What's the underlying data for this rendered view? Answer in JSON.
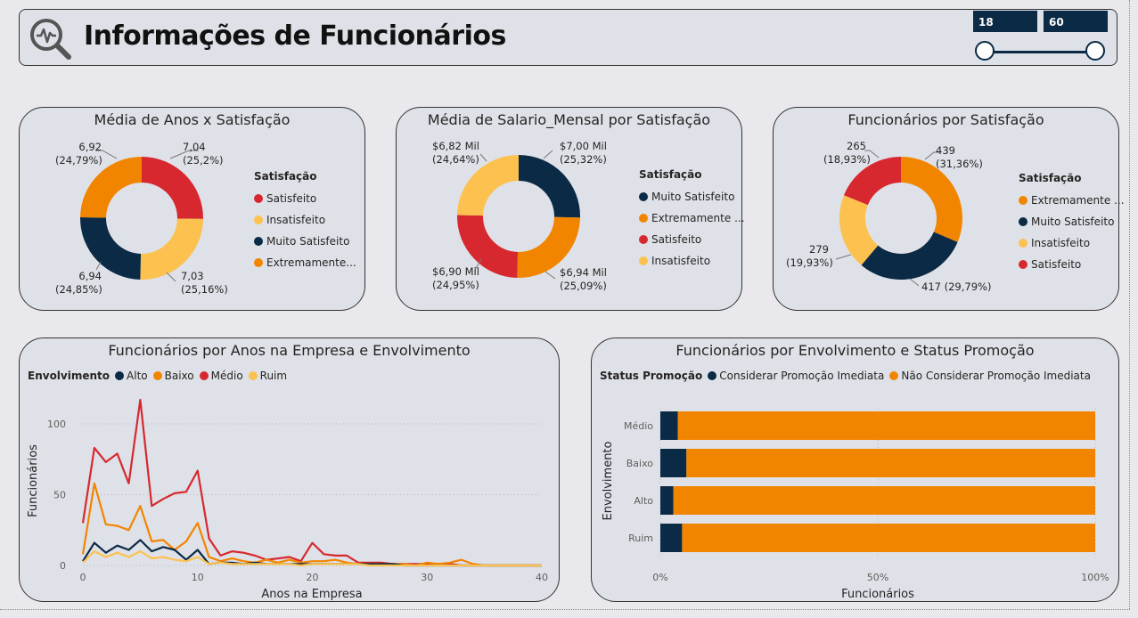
{
  "header": {
    "title": "Informações de Funcionários",
    "slider": {
      "min_label": "18",
      "max_label": "60"
    }
  },
  "colors": {
    "navy": "#0b2a45",
    "orange": "#f28500",
    "red": "#d7282f",
    "yellow": "#fcc14f"
  },
  "donut1": {
    "title": "Média de Anos x Satisfação",
    "legend_title": "Satisfação",
    "slices": [
      {
        "name": "Satisfeito",
        "value": 7.04,
        "label": "7,04",
        "pct": "(25,2%)",
        "color": "#d7282f"
      },
      {
        "name": "Insatisfeito",
        "value": 7.03,
        "label": "7,03",
        "pct": "(25,16%)",
        "color": "#fcc14f"
      },
      {
        "name": "Muito Satisfeito",
        "value": 6.94,
        "label": "6,94",
        "pct": "(24,85%)",
        "color": "#0b2a45"
      },
      {
        "name": "Extremamente...",
        "value": 6.92,
        "label": "6,92",
        "pct": "(24,79%)",
        "color": "#f28500"
      }
    ]
  },
  "donut2": {
    "title": "Média de Salario_Mensal por Satisfação",
    "legend_title": "Satisfação",
    "slices": [
      {
        "name": "Muito Satisfeito",
        "value": 7.0,
        "label": "$7,00 Mil",
        "pct": "(25,32%)",
        "color": "#0b2a45"
      },
      {
        "name": "Extremamente ...",
        "value": 6.94,
        "label": "$6,94 Mil",
        "pct": "(25,09%)",
        "color": "#f28500"
      },
      {
        "name": "Satisfeito",
        "value": 6.9,
        "label": "$6,90 Mil",
        "pct": "(24,95%)",
        "color": "#d7282f"
      },
      {
        "name": "Insatisfeito",
        "value": 6.82,
        "label": "$6,82 Mil",
        "pct": "(24,64%)",
        "color": "#fcc14f"
      }
    ]
  },
  "donut3": {
    "title": "Funcionários por Satisfação",
    "legend_title": "Satisfação",
    "slices": [
      {
        "name": "Extremamente ...",
        "value": 439,
        "label": "439",
        "pct": "(31,36%)",
        "color": "#f28500"
      },
      {
        "name": "Muito Satisfeito",
        "value": 417,
        "label": "417 (29,79%)",
        "pct": "",
        "color": "#0b2a45"
      },
      {
        "name": "Insatisfeito",
        "value": 279,
        "label": "279",
        "pct": "(19,93%)",
        "color": "#fcc14f"
      },
      {
        "name": "Satisfeito",
        "value": 265,
        "label": "265",
        "pct": "(18,93%)",
        "color": "#d7282f"
      }
    ]
  },
  "line_chart": {
    "title": "Funcionários por Anos na Empresa e Envolvimento",
    "legend_title": "Envolvimento",
    "legend": [
      {
        "name": "Alto",
        "color": "#0b2a45"
      },
      {
        "name": "Baixo",
        "color": "#f28500"
      },
      {
        "name": "Médio",
        "color": "#d7282f"
      },
      {
        "name": "Ruim",
        "color": "#fcc14f"
      }
    ],
    "ylabel": "Funcionários",
    "xlabel": "Anos na Empresa",
    "yticks": [
      "0",
      "50",
      "100"
    ],
    "xticks": [
      "0",
      "10",
      "20",
      "30",
      "40"
    ]
  },
  "bar_chart": {
    "title": "Funcionários por Envolvimento e Status Promoção",
    "legend_title": "Status Promoção",
    "legend": [
      {
        "name": "Considerar Promoção Imediata",
        "color": "#0b2a45"
      },
      {
        "name": "Não Considerar Promoção Imediata",
        "color": "#f28500"
      }
    ],
    "ylabel": "Envolvimento",
    "xlabel": "Funcionários",
    "xticks": [
      "0%",
      "50%",
      "100%"
    ]
  },
  "chart_data": [
    {
      "type": "line",
      "x": [
        0,
        1,
        2,
        3,
        4,
        5,
        6,
        7,
        8,
        9,
        10,
        11,
        12,
        13,
        14,
        15,
        16,
        17,
        18,
        19,
        20,
        21,
        22,
        23,
        24,
        25,
        26,
        27,
        28,
        29,
        30,
        31,
        32,
        33,
        34,
        35,
        36,
        37,
        40
      ],
      "xlabel": "Anos na Empresa",
      "ylabel": "Funcionários",
      "ylim": [
        0,
        125
      ],
      "xlim": [
        0,
        40
      ],
      "series": [
        {
          "name": "Médio",
          "color": "#d7282f",
          "values": [
            30,
            83,
            73,
            79,
            58,
            117,
            42,
            47,
            51,
            52,
            67,
            19,
            7,
            10,
            9,
            7,
            4,
            5,
            6,
            3,
            16,
            8,
            7,
            7,
            2,
            2,
            2,
            1,
            1,
            1,
            1,
            1,
            1,
            0,
            0,
            0,
            0,
            0,
            0
          ]
        },
        {
          "name": "Baixo",
          "color": "#f28500",
          "values": [
            8,
            58,
            29,
            28,
            25,
            42,
            17,
            18,
            11,
            17,
            30,
            6,
            3,
            5,
            3,
            2,
            4,
            2,
            4,
            2,
            3,
            3,
            4,
            2,
            1,
            1,
            1,
            1,
            1,
            0,
            2,
            1,
            2,
            4,
            1,
            0,
            0,
            0,
            0
          ]
        },
        {
          "name": "Alto",
          "color": "#0b2a45",
          "values": [
            3,
            16,
            9,
            14,
            11,
            18,
            10,
            13,
            11,
            4,
            11,
            1,
            2,
            2,
            1,
            2,
            1,
            1,
            1,
            1,
            1,
            1,
            1,
            1,
            1,
            1,
            1,
            1,
            0,
            0,
            0,
            0,
            0,
            0,
            0,
            0,
            0,
            0,
            0
          ]
        },
        {
          "name": "Ruim",
          "color": "#fcc14f",
          "values": [
            2,
            10,
            6,
            9,
            6,
            10,
            5,
            6,
            4,
            3,
            6,
            1,
            2,
            1,
            1,
            1,
            1,
            1,
            1,
            0,
            1,
            1,
            1,
            1,
            1,
            0,
            0,
            0,
            0,
            0,
            0,
            0,
            0,
            0,
            0,
            0,
            0,
            0,
            0
          ]
        }
      ]
    },
    {
      "type": "bar",
      "orientation": "horizontal",
      "stacked_percent": true,
      "categories": [
        "Médio",
        "Baixo",
        "Alto",
        "Ruim"
      ],
      "xlabel": "Funcionários",
      "ylabel": "Envolvimento",
      "series": [
        {
          "name": "Considerar Promoção Imediata",
          "color": "#0b2a45",
          "values": [
            4,
            6,
            3,
            5
          ]
        },
        {
          "name": "Não Considerar Promoção Imediata",
          "color": "#f28500",
          "values": [
            96,
            94,
            97,
            95
          ]
        }
      ]
    }
  ]
}
